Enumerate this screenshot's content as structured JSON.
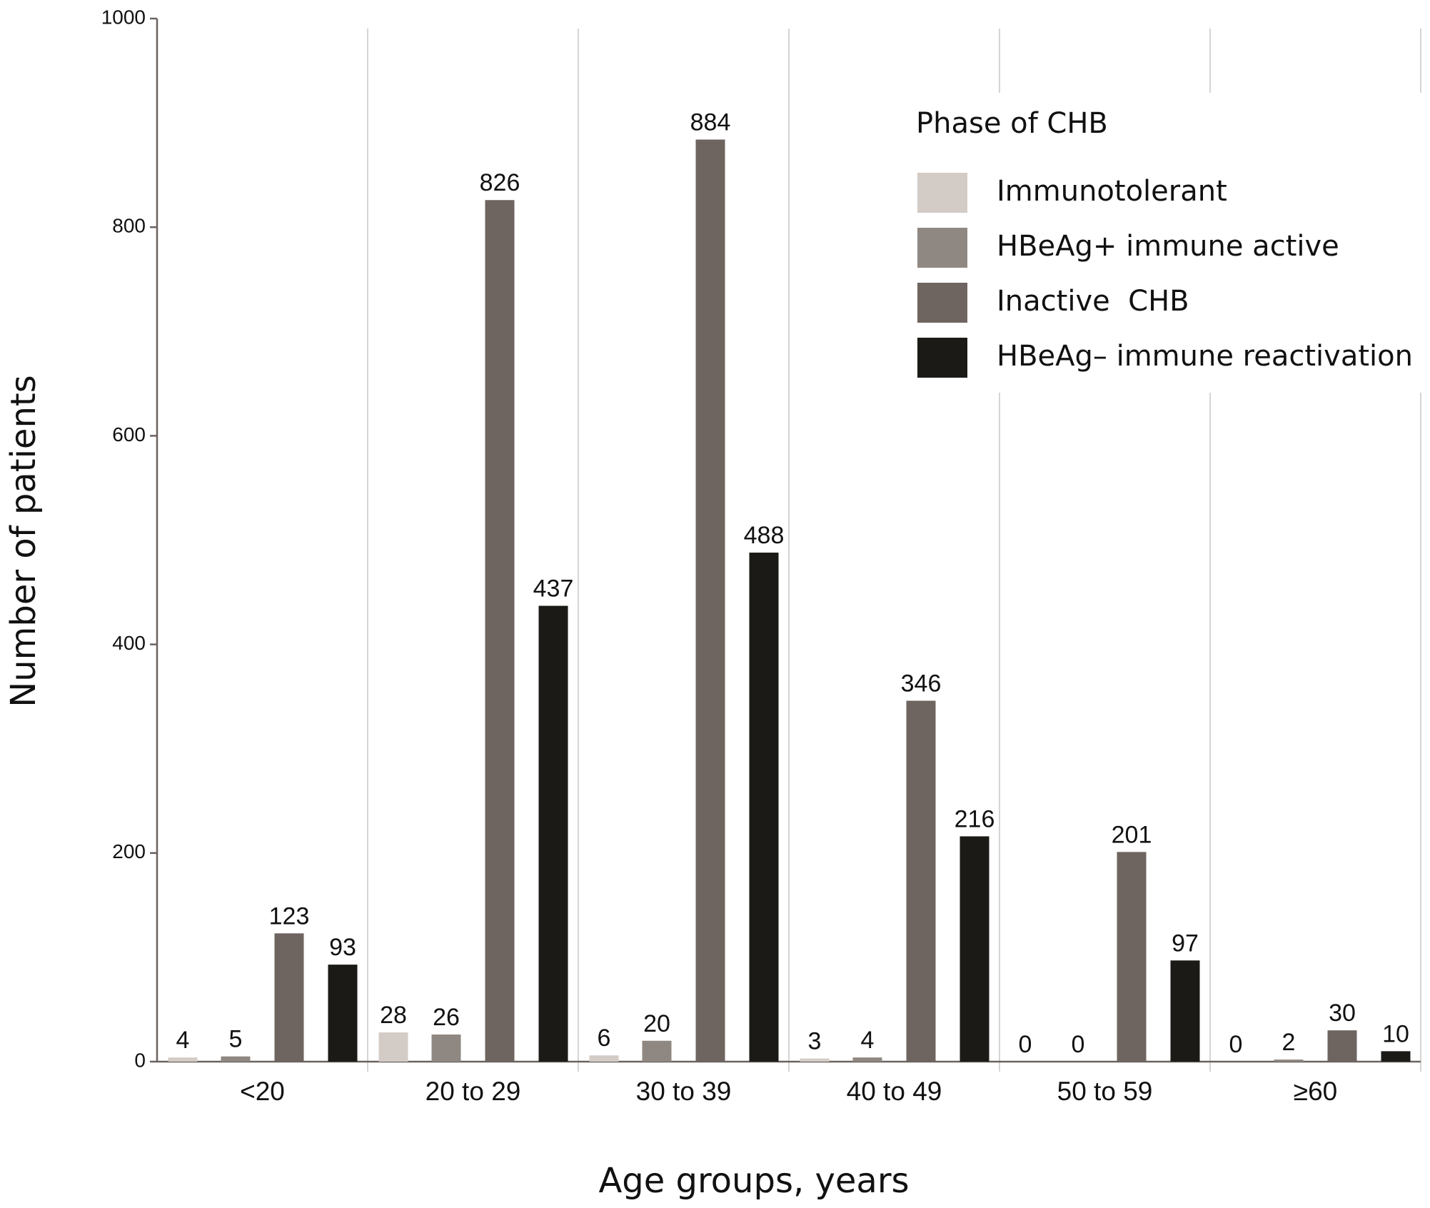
{
  "chart_data": {
    "type": "bar",
    "x_label": "Age groups, years",
    "y_label": "Number of patients",
    "legend_title": "Phase of CHB",
    "legend_position": "upper right",
    "categories": [
      "<20",
      "20 to 29",
      "30 to 39",
      "40 to 49",
      "50 to 59",
      "≥60"
    ],
    "series": [
      {
        "name": "Immunotolerant",
        "color": "#d3cbc6",
        "values": [
          4,
          28,
          6,
          3,
          0,
          0
        ]
      },
      {
        "name": "HBeAg+ immune active",
        "color": "#8f8882",
        "values": [
          5,
          26,
          20,
          4,
          0,
          2
        ]
      },
      {
        "name": "Inactive  CHB",
        "color": "#6e6560",
        "values": [
          123,
          826,
          884,
          346,
          201,
          30
        ]
      },
      {
        "name": "HBeAg– immune reactivation",
        "color": "#1b1a17",
        "values": [
          93,
          437,
          488,
          216,
          97,
          10
        ]
      }
    ],
    "ylim": [
      0,
      1000
    ],
    "yticks": [
      0,
      200,
      400,
      600,
      800,
      1000
    ]
  }
}
